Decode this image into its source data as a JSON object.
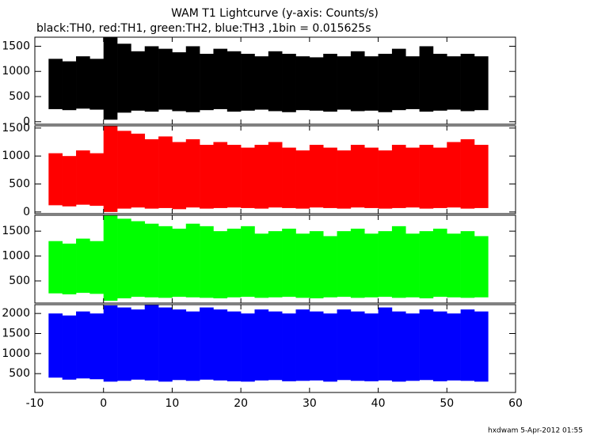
{
  "chart_data": {
    "type": "range",
    "title": "WAM T1 Lightcurve (y-axis: Counts/s)",
    "subtitle": "black:TH0, red:TH1, green:TH2, blue:TH3 ,1bin = 0.015625s",
    "footer": "hxdwam  5-Apr-2012 01:55",
    "xlim": [
      -10,
      60
    ],
    "xticks": [
      -10,
      0,
      10,
      20,
      30,
      40,
      50,
      60
    ],
    "bins": [
      -8,
      -6,
      -4,
      -2,
      0,
      2,
      4,
      6,
      8,
      10,
      12,
      14,
      16,
      18,
      20,
      22,
      24,
      26,
      28,
      30,
      32,
      34,
      36,
      38,
      40,
      42,
      44,
      46,
      48,
      50,
      52,
      54,
      56
    ],
    "panels": [
      {
        "color": "#000000",
        "ylim": [
          -50,
          1680
        ],
        "yticks": [
          0,
          500,
          1000,
          1500
        ],
        "low": [
          250,
          230,
          260,
          240,
          40,
          180,
          220,
          200,
          240,
          210,
          190,
          230,
          250,
          200,
          220,
          240,
          210,
          190,
          230,
          220,
          200,
          240,
          210,
          220,
          190,
          230,
          250,
          200,
          220,
          240,
          210,
          230
        ],
        "high": [
          1250,
          1200,
          1300,
          1250,
          1680,
          1550,
          1400,
          1500,
          1450,
          1380,
          1500,
          1350,
          1450,
          1400,
          1350,
          1300,
          1400,
          1350,
          1300,
          1280,
          1350,
          1300,
          1400,
          1300,
          1350,
          1450,
          1300,
          1500,
          1350,
          1300,
          1350,
          1300
        ]
      },
      {
        "color": "#ff0000",
        "ylim": [
          -30,
          1540
        ],
        "yticks": [
          0,
          500,
          1000,
          1500
        ],
        "low": [
          120,
          100,
          130,
          110,
          0,
          60,
          80,
          60,
          70,
          50,
          80,
          60,
          70,
          80,
          70,
          60,
          80,
          70,
          60,
          80,
          70,
          60,
          80,
          70,
          60,
          70,
          80,
          60,
          70,
          80,
          60,
          70
        ],
        "high": [
          1050,
          1000,
          1100,
          1050,
          1540,
          1450,
          1400,
          1300,
          1350,
          1250,
          1300,
          1200,
          1250,
          1200,
          1150,
          1200,
          1250,
          1150,
          1100,
          1200,
          1150,
          1100,
          1200,
          1150,
          1100,
          1200,
          1150,
          1200,
          1150,
          1250,
          1300,
          1200
        ]
      },
      {
        "color": "#00ff00",
        "ylim": [
          55,
          1820
        ],
        "yticks": [
          500,
          1000,
          1500
        ],
        "low": [
          250,
          230,
          260,
          240,
          100,
          150,
          180,
          170,
          160,
          180,
          170,
          160,
          150,
          170,
          180,
          160,
          170,
          180,
          160,
          150,
          170,
          180,
          160,
          170,
          180,
          160,
          170,
          150,
          180,
          170,
          160,
          170
        ],
        "high": [
          1300,
          1250,
          1350,
          1300,
          1820,
          1750,
          1700,
          1650,
          1600,
          1550,
          1650,
          1600,
          1500,
          1550,
          1600,
          1450,
          1500,
          1550,
          1450,
          1500,
          1400,
          1500,
          1550,
          1450,
          1500,
          1600,
          1450,
          1500,
          1550,
          1450,
          1500,
          1400
        ]
      },
      {
        "color": "#0000ff",
        "ylim": [
          30,
          2220
        ],
        "yticks": [
          500,
          1000,
          1500,
          2000
        ],
        "low": [
          400,
          350,
          380,
          360,
          300,
          320,
          350,
          330,
          300,
          340,
          320,
          350,
          330,
          310,
          300,
          330,
          340,
          310,
          320,
          330,
          300,
          340,
          320,
          310,
          330,
          300,
          320,
          340,
          310,
          330,
          320,
          300
        ],
        "high": [
          2000,
          1950,
          2050,
          2000,
          2200,
          2150,
          2100,
          2220,
          2150,
          2100,
          2050,
          2150,
          2100,
          2050,
          2000,
          2100,
          2050,
          2000,
          2100,
          2050,
          2000,
          2100,
          2050,
          2000,
          2150,
          2050,
          2000,
          2100,
          2050,
          2000,
          2100,
          2050
        ]
      }
    ]
  }
}
